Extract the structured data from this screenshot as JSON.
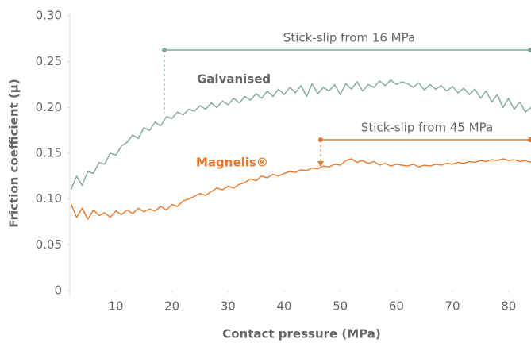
{
  "chart_data": {
    "type": "line",
    "xlabel": "Contact pressure (MPa)",
    "ylabel": "Friction coefficient (µ)",
    "xlim": [
      1.8,
      84
    ],
    "xticks": [
      10,
      20,
      30,
      40,
      50,
      60,
      70,
      80
    ],
    "ylim": [
      0,
      0.3
    ],
    "yticks": [
      0,
      0.05,
      {
        "value": 0.1,
        "label": "0.10"
      },
      0.15,
      {
        "value": 0.2,
        "label": "0.20"
      },
      0.25,
      {
        "value": 0.3,
        "label": "0.30"
      }
    ],
    "grid": false,
    "x": [
      2,
      3,
      4,
      5,
      6,
      7,
      8,
      9,
      10,
      11,
      12,
      13,
      14,
      15,
      16,
      17,
      18,
      19,
      20,
      21,
      22,
      23,
      24,
      25,
      26,
      27,
      28,
      29,
      30,
      31,
      32,
      33,
      34,
      35,
      36,
      37,
      38,
      39,
      40,
      41,
      42,
      43,
      44,
      45,
      46,
      47,
      48,
      49,
      50,
      51,
      52,
      53,
      54,
      55,
      56,
      57,
      58,
      59,
      60,
      61,
      62,
      63,
      64,
      65,
      66,
      67,
      68,
      69,
      70,
      71,
      72,
      73,
      74,
      75,
      76,
      77,
      78,
      79,
      80,
      81,
      82,
      83,
      84
    ],
    "series": [
      {
        "name": "Galvanised",
        "color": "#7fa896",
        "values": [
          0.11,
          0.125,
          0.115,
          0.13,
          0.128,
          0.14,
          0.138,
          0.15,
          0.148,
          0.158,
          0.162,
          0.17,
          0.166,
          0.178,
          0.175,
          0.184,
          0.18,
          0.19,
          0.188,
          0.195,
          0.192,
          0.198,
          0.196,
          0.202,
          0.198,
          0.205,
          0.2,
          0.207,
          0.203,
          0.21,
          0.205,
          0.212,
          0.208,
          0.215,
          0.21,
          0.218,
          0.212,
          0.22,
          0.214,
          0.222,
          0.216,
          0.224,
          0.212,
          0.226,
          0.215,
          0.222,
          0.218,
          0.225,
          0.214,
          0.226,
          0.22,
          0.228,
          0.218,
          0.225,
          0.222,
          0.229,
          0.224,
          0.23,
          0.225,
          0.228,
          0.226,
          0.222,
          0.227,
          0.219,
          0.225,
          0.22,
          0.224,
          0.218,
          0.223,
          0.216,
          0.221,
          0.214,
          0.22,
          0.21,
          0.218,
          0.206,
          0.214,
          0.2,
          0.21,
          0.198,
          0.206,
          0.195,
          0.2
        ]
      },
      {
        "name": "Magnelis®",
        "color": "#e8782a",
        "values": [
          0.095,
          0.08,
          0.09,
          0.078,
          0.088,
          0.082,
          0.085,
          0.08,
          0.087,
          0.083,
          0.088,
          0.084,
          0.09,
          0.086,
          0.089,
          0.087,
          0.092,
          0.088,
          0.094,
          0.092,
          0.098,
          0.1,
          0.103,
          0.106,
          0.104,
          0.108,
          0.112,
          0.11,
          0.114,
          0.112,
          0.116,
          0.118,
          0.122,
          0.12,
          0.125,
          0.123,
          0.127,
          0.125,
          0.128,
          0.13,
          0.129,
          0.132,
          0.131,
          0.134,
          0.133,
          0.136,
          0.135,
          0.138,
          0.137,
          0.142,
          0.144,
          0.14,
          0.142,
          0.139,
          0.141,
          0.137,
          0.139,
          0.136,
          0.138,
          0.137,
          0.136,
          0.138,
          0.135,
          0.137,
          0.136,
          0.138,
          0.137,
          0.139,
          0.138,
          0.14,
          0.139,
          0.141,
          0.14,
          0.142,
          0.141,
          0.143,
          0.142,
          0.144,
          0.142,
          0.143,
          0.141,
          0.142,
          0.14
        ]
      }
    ],
    "annotations": [
      {
        "text": "Stick-slip from 16 MPa",
        "color": "#7fa896"
      },
      {
        "text": "Stick-slip from 45 MPa",
        "color": "#e8782a"
      }
    ]
  }
}
